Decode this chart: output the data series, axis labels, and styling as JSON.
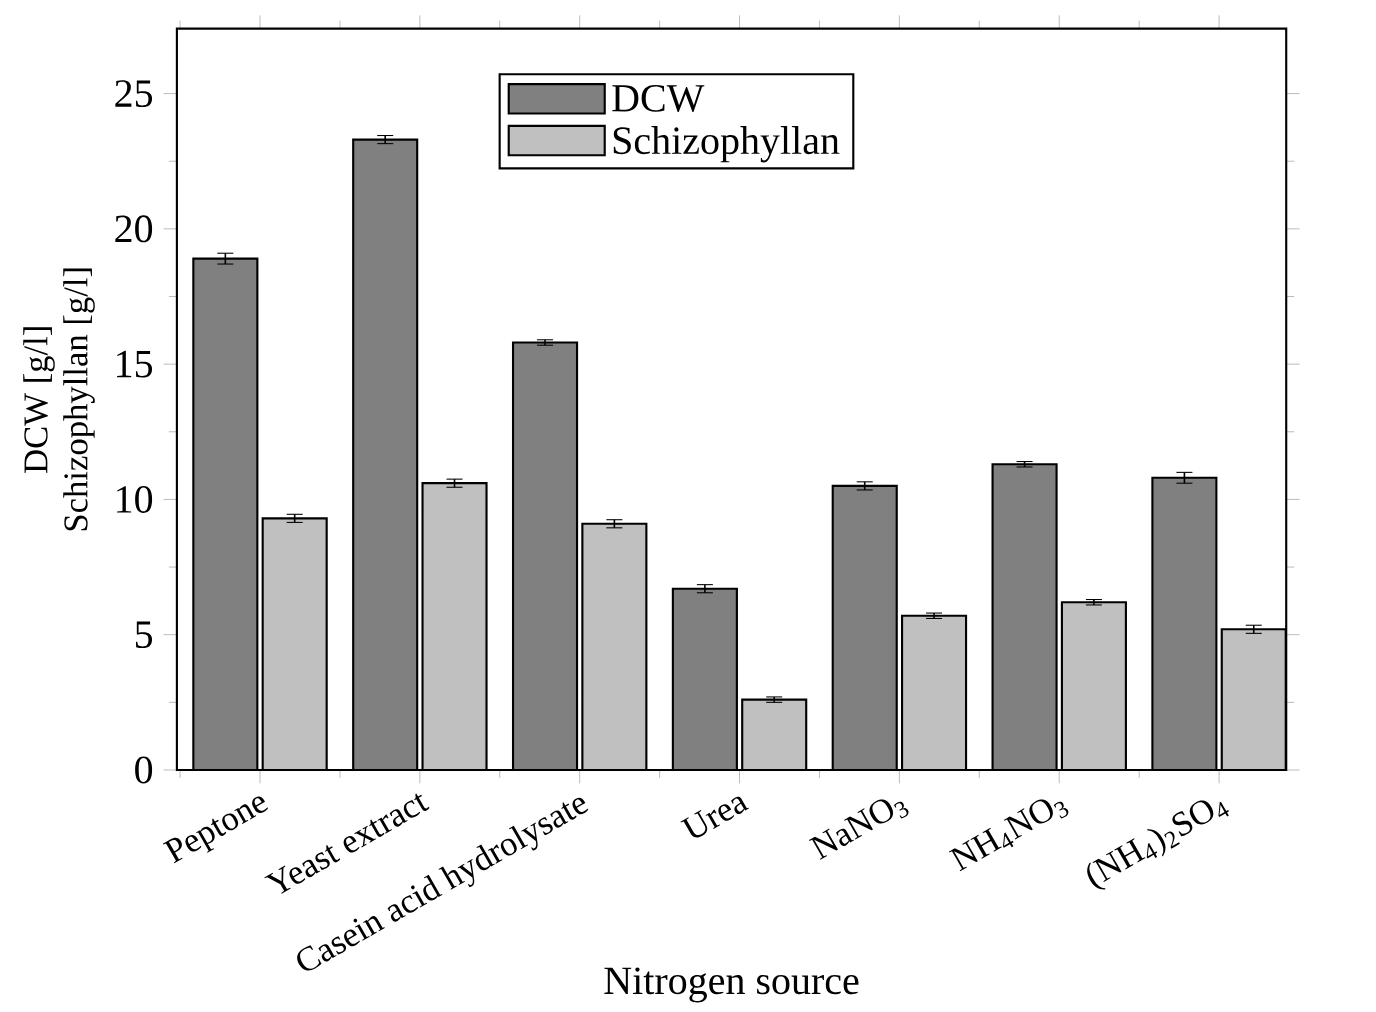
{
  "chart_data": {
    "type": "bar",
    "xlabel": "Nitrogen source",
    "ylabel": "DCW [g/l]\nSchizophyllan [g/l]",
    "categories": [
      "Peptone",
      "Yeast extract",
      "Casein acid hydrolysate",
      "Urea",
      "NaNO$_{3}$",
      "NH$_{4}$NO$_{3}$",
      "(NH$_{4}$)$_{2}$SO$_{4}$"
    ],
    "series": [
      {
        "name": "DCW",
        "color": "#808080",
        "values": [
          18.9,
          23.3,
          15.8,
          6.7,
          10.5,
          11.3,
          10.8
        ],
        "errors": [
          0.2,
          0.15,
          0.1,
          0.15,
          0.15,
          0.1,
          0.2
        ]
      },
      {
        "name": "Schizophyllan",
        "color": "#c0c0c0",
        "values": [
          9.3,
          10.6,
          9.1,
          2.6,
          5.7,
          6.2,
          5.2
        ],
        "errors": [
          0.15,
          0.15,
          0.15,
          0.1,
          0.1,
          0.1,
          0.15
        ]
      }
    ],
    "ylim": [
      0,
      27.4
    ],
    "yticks": [
      0,
      5,
      10,
      15,
      20,
      25
    ],
    "legend": "top",
    "grid": false
  }
}
